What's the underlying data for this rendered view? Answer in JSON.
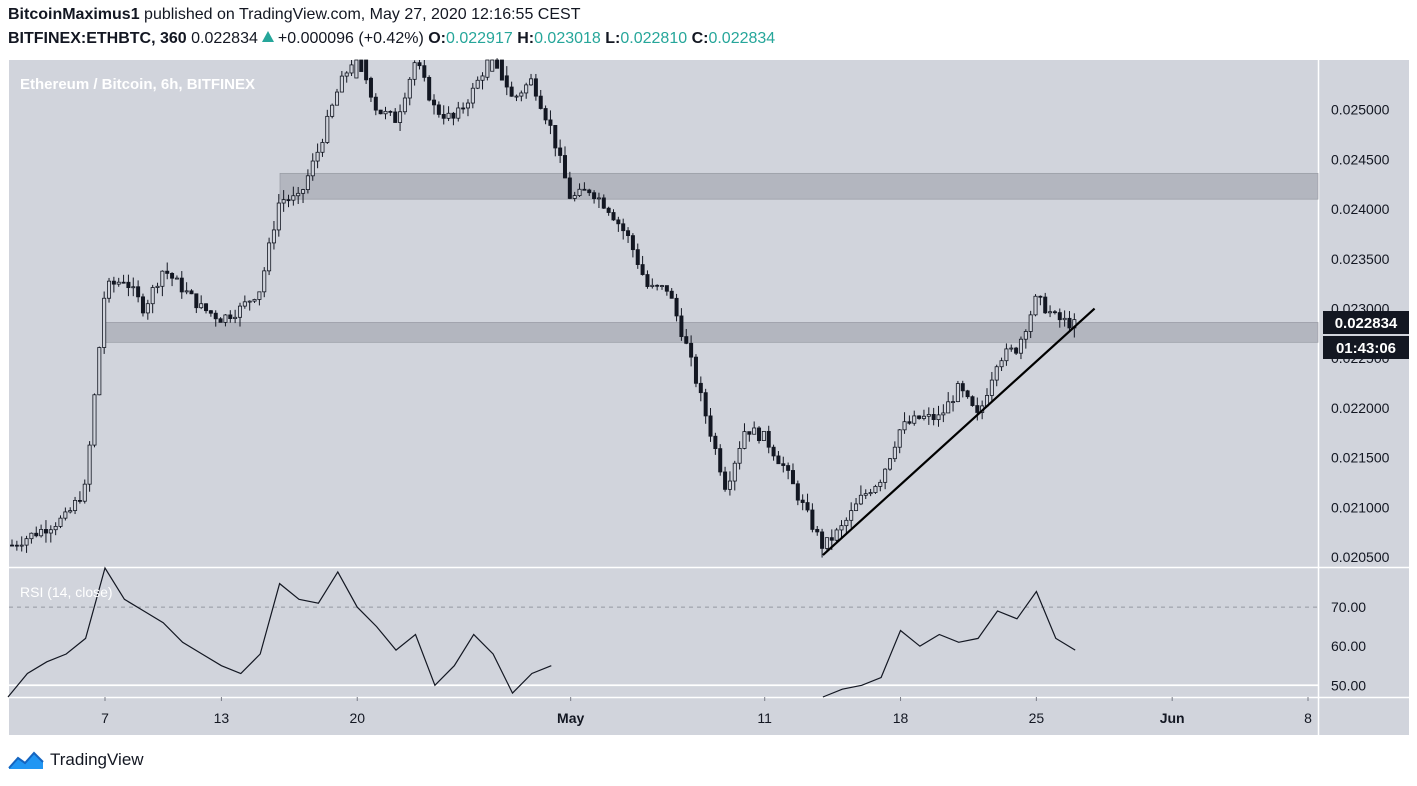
{
  "header": {
    "author": "BitcoinMaximus1",
    "published_text": "published on TradingView.com, May 27, 2020 12:16:55 CEST",
    "symbol": "BITFINEX:ETHBTC, 360",
    "last": "0.022834",
    "change": "+0.000096 (+0.42%)",
    "o_label": "O:",
    "o_value": "0.022917",
    "h_label": "H:",
    "h_value": "0.023018",
    "l_label": "L:",
    "l_value": "0.022810",
    "c_label": "C:",
    "c_value": "0.022834"
  },
  "footer": {
    "brand": "TradingView",
    "logo_icon": "tradingview-logo-icon"
  },
  "colors": {
    "pane_bg": "#d1d4dc",
    "zone": "#b2b5be",
    "text_dark": "#131722",
    "up": "#26a69a",
    "candle": "#131722"
  },
  "chart_data": [
    {
      "type": "candlestick",
      "title": "Ethereum / Bitcoin, 6h, BITFINEX",
      "x_ticks": [
        "7",
        "13",
        "20",
        "May",
        "11",
        "18",
        "25",
        "Jun",
        "8"
      ],
      "ylim": [
        0.0204,
        0.0255
      ],
      "y_ticks": [
        "0.020500",
        "0.021000",
        "0.021500",
        "0.022000",
        "0.022500",
        "0.023000",
        "0.023500",
        "0.024000",
        "0.024500",
        "0.025000"
      ],
      "last_price_label": "0.022834",
      "countdown_label": "01:43:06",
      "support_resistance_zones": [
        {
          "from": 0.02266,
          "to": 0.02286
        },
        {
          "from": 0.0241,
          "to": 0.02436
        }
      ],
      "trendline": {
        "from": [
          "May 14",
          0.02052
        ],
        "to": [
          "May 28",
          0.023
        ]
      },
      "close_path": [
        [
          "Apr 2",
          0.0206
        ],
        [
          "Apr 4",
          0.0208
        ],
        [
          "Apr 5",
          0.0209
        ],
        [
          "Apr 6",
          0.0212
        ],
        [
          "Apr 7",
          0.0232
        ],
        [
          "Apr 8",
          0.0233
        ],
        [
          "Apr 9",
          0.023
        ],
        [
          "Apr 10",
          0.0234
        ],
        [
          "Apr 11",
          0.0232
        ],
        [
          "Apr 12",
          0.023
        ],
        [
          "Apr 13",
          0.0229
        ],
        [
          "Apr 14",
          0.023
        ],
        [
          "Apr 15",
          0.0232
        ],
        [
          "Apr 16",
          0.0241
        ],
        [
          "Apr 17",
          0.0241
        ],
        [
          "Apr 18",
          0.0246
        ],
        [
          "Apr 19",
          0.0252
        ],
        [
          "Apr 20",
          0.0256
        ],
        [
          "Apr 21",
          0.025
        ],
        [
          "Apr 22",
          0.0249
        ],
        [
          "Apr 23",
          0.0255
        ],
        [
          "Apr 24",
          0.025
        ],
        [
          "Apr 25",
          0.0249
        ],
        [
          "Apr 26",
          0.0252
        ],
        [
          "Apr 27",
          0.0256
        ],
        [
          "Apr 28",
          0.0251
        ],
        [
          "Apr 29",
          0.0253
        ],
        [
          "Apr 30",
          0.0248
        ],
        [
          "May 1",
          0.0241
        ],
        [
          "May 2",
          0.0242
        ],
        [
          "May 3",
          0.024
        ],
        [
          "May 4",
          0.0237
        ],
        [
          "May 5",
          0.0232
        ],
        [
          "May 6",
          0.0232
        ],
        [
          "May 7",
          0.0226
        ],
        [
          "May 8",
          0.0219
        ],
        [
          "May 9",
          0.0212
        ],
        [
          "May 10",
          0.0218
        ],
        [
          "May 11",
          0.0217
        ],
        [
          "May 12",
          0.0214
        ],
        [
          "May 13",
          0.021
        ],
        [
          "May 14",
          0.0206
        ],
        [
          "May 15",
          0.0208
        ],
        [
          "May 16",
          0.0211
        ],
        [
          "May 17",
          0.0213
        ],
        [
          "May 18",
          0.0218
        ],
        [
          "May 19",
          0.0219
        ],
        [
          "May 20",
          0.0219
        ],
        [
          "May 21",
          0.0222
        ],
        [
          "May 22",
          0.0219
        ],
        [
          "May 23",
          0.0225
        ],
        [
          "May 24",
          0.0226
        ],
        [
          "May 25",
          0.0231
        ],
        [
          "May 26",
          0.0229
        ],
        [
          "May 27",
          0.022834
        ]
      ]
    },
    {
      "type": "line",
      "title": "RSI (14, close)",
      "ylim": [
        47,
        80
      ],
      "y_ticks": [
        "50.00",
        "60.00",
        "70.00"
      ],
      "levels": [
        70,
        50
      ],
      "series": [
        {
          "values": [
            [
              "Apr 2",
              46
            ],
            [
              "Apr 3",
              53
            ],
            [
              "Apr 4",
              56
            ],
            [
              "Apr 5",
              58
            ],
            [
              "Apr 6",
              62
            ],
            [
              "Apr 7",
              80
            ],
            [
              "Apr 8",
              72
            ],
            [
              "Apr 9",
              69
            ],
            [
              "Apr 10",
              66
            ],
            [
              "Apr 11",
              61
            ],
            [
              "Apr 12",
              58
            ],
            [
              "Apr 13",
              55
            ],
            [
              "Apr 14",
              53
            ],
            [
              "Apr 15",
              58
            ],
            [
              "Apr 16",
              76
            ],
            [
              "Apr 17",
              72
            ],
            [
              "Apr 18",
              71
            ],
            [
              "Apr 19",
              79
            ],
            [
              "Apr 20",
              70
            ],
            [
              "Apr 21",
              65
            ],
            [
              "Apr 22",
              59
            ],
            [
              "Apr 23",
              63
            ],
            [
              "Apr 24",
              50
            ],
            [
              "Apr 25",
              55
            ],
            [
              "Apr 26",
              63
            ],
            [
              "Apr 27",
              58
            ],
            [
              "Apr 28",
              48
            ],
            [
              "Apr 29",
              53
            ],
            [
              "Apr 30",
              55
            ],
            [
              "May 14",
              45
            ],
            [
              "May 15",
              49
            ],
            [
              "May 16",
              50
            ],
            [
              "May 17",
              52
            ],
            [
              "May 18",
              64
            ],
            [
              "May 19",
              60
            ],
            [
              "May 20",
              63
            ],
            [
              "May 21",
              61
            ],
            [
              "May 22",
              62
            ],
            [
              "May 23",
              69
            ],
            [
              "May 24",
              67
            ],
            [
              "May 25",
              74
            ],
            [
              "May 26",
              62
            ],
            [
              "May 27",
              59
            ]
          ]
        }
      ]
    }
  ]
}
